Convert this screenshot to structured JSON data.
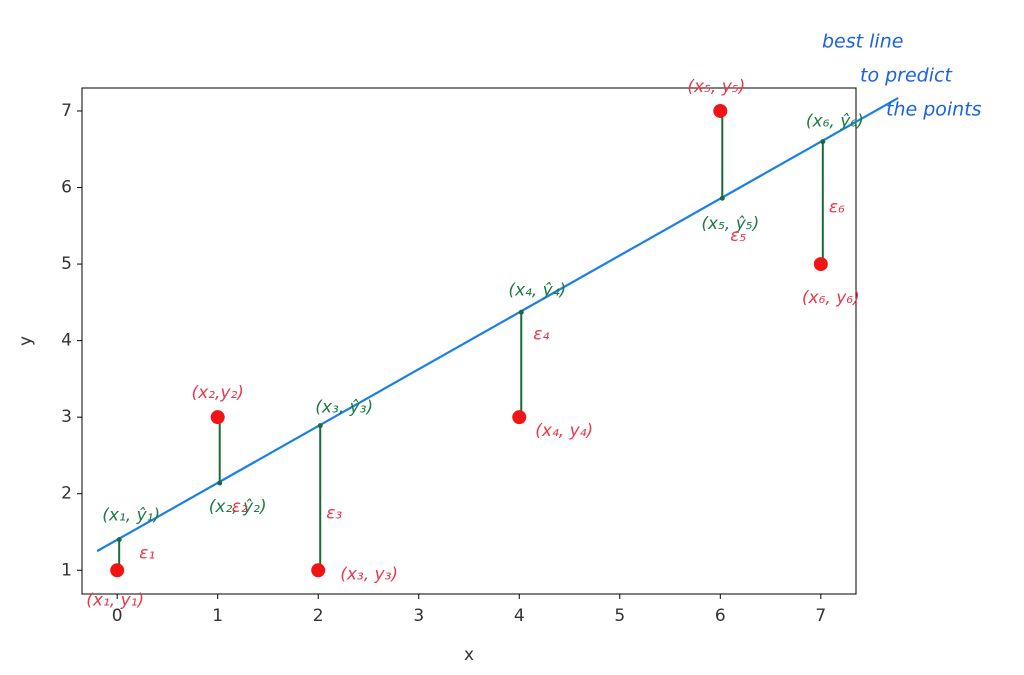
{
  "chart_data": {
    "type": "scatter",
    "x": [
      0,
      1,
      2,
      4,
      6,
      7
    ],
    "y": [
      1,
      3,
      1,
      3,
      7,
      5
    ],
    "color": "#f01414",
    "xlim": [
      -0.35,
      7.35
    ],
    "ylim": [
      0.69,
      7.3
    ],
    "xticks": [
      0,
      1,
      2,
      3,
      4,
      5,
      6,
      7
    ],
    "yticks": [
      1,
      2,
      3,
      4,
      5,
      6,
      7
    ],
    "x_label": "x",
    "y_label": "y",
    "fit_line": {
      "x": [
        -0.2,
        7.77
      ],
      "y": [
        1.25,
        7.17
      ],
      "color": "#1a7fe6"
    },
    "fitted": [
      1.4,
      2.14,
      2.89,
      4.37,
      5.86,
      6.6
    ],
    "residual_color": "#1b6b3a",
    "point_labels": [
      "(x₁, y₁)",
      "(x₂,y₂)",
      "(x₃, y₃)",
      "(x₄, y₄)",
      "(x₅, y₅)",
      "(x₆, y₆)"
    ],
    "point_label_color": "#e8384a",
    "fit_labels": [
      "(x₁, ŷ₁)",
      "(x₂, ŷ₂)",
      "(x₃, ŷ₃)",
      "(x₄, ŷ₄)",
      "(x₅, ŷ₅)",
      "(x₆, ŷ₆)"
    ],
    "fit_label_color": "#1e7a44",
    "residual_labels": [
      "ε₁",
      "ε₂",
      "ε₃",
      "ε₄",
      "ε₅",
      "ε₆"
    ],
    "note": [
      "best line",
      "to predict",
      "the points"
    ],
    "note_color": "#1a62e0"
  }
}
